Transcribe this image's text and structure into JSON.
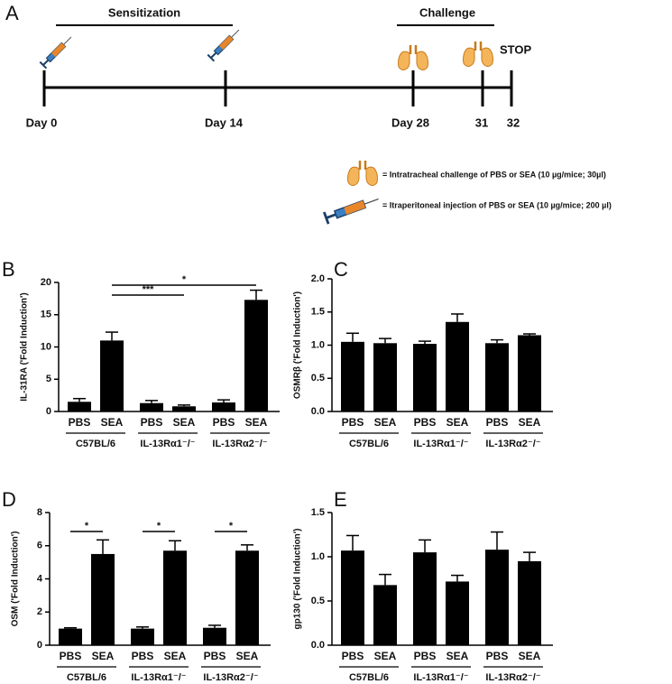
{
  "timeline": {
    "label": "A",
    "phases": [
      "Sensitization",
      "Challenge"
    ],
    "days": [
      "Day 0",
      "Day 14",
      "Day 28",
      "31",
      "32"
    ],
    "stop": "STOP",
    "legend": [
      "= Intratracheal  challenge of PBS or SEA (10 µg/mice; 30µl)",
      "= Itraperitoneal injection of PBS or SEA (10 µg/mice; 200 µl)"
    ]
  },
  "chart_data": [
    {
      "type": "bar",
      "panel": "B",
      "y_label": "IL-31RA ('Fold Induction')",
      "categories": [
        "PBS",
        "SEA",
        "PBS",
        "SEA",
        "PBS",
        "SEA"
      ],
      "groups": [
        "C57BL/6",
        "IL-13Rα1⁻/⁻",
        "IL-13Rα2⁻/⁻"
      ],
      "values": [
        1.5,
        11,
        1.3,
        0.8,
        1.4,
        17.3
      ],
      "errors": [
        0.5,
        1.3,
        0.4,
        0.2,
        0.4,
        1.5
      ],
      "color": "#000000",
      "ylim": [
        0,
        20
      ],
      "yticks": [
        0,
        5,
        10,
        15,
        20
      ],
      "significance": [
        "***",
        "*"
      ]
    },
    {
      "type": "bar",
      "panel": "C",
      "y_label": "OSMRβ ('Fold Induction')",
      "categories": [
        "PBS",
        "SEA",
        "PBS",
        "SEA",
        "PBS",
        "SEA"
      ],
      "groups": [
        "C57BL/6",
        "IL-13Rα1⁻/⁻",
        "IL-13Rα2⁻/⁻"
      ],
      "values": [
        1.05,
        1.03,
        1.02,
        1.35,
        1.03,
        1.15
      ],
      "errors": [
        0.13,
        0.07,
        0.04,
        0.12,
        0.05,
        0.02
      ],
      "color": "#000000",
      "ylim": [
        0,
        2
      ],
      "yticks": [
        {
          "value": 0,
          "label": "0.0"
        },
        {
          "value": 0.5,
          "label": "0.5"
        },
        {
          "value": 1,
          "label": "1.0"
        },
        {
          "value": 1.5,
          "label": "1.5"
        },
        {
          "value": 2,
          "label": "2.0"
        }
      ]
    },
    {
      "type": "bar",
      "panel": "D",
      "y_label": "OSM ('Fold Induction')",
      "categories": [
        "PBS",
        "SEA",
        "PBS",
        "SEA",
        "PBS",
        "SEA"
      ],
      "groups": [
        "C57BL/6",
        "IL-13Rα1⁻/⁻",
        "IL-13Rα2⁻/⁻"
      ],
      "values": [
        1.0,
        5.5,
        1.0,
        5.7,
        1.05,
        5.7
      ],
      "errors": [
        0.05,
        0.85,
        0.1,
        0.6,
        0.15,
        0.35
      ],
      "color": "#000000",
      "ylim": [
        0,
        8
      ],
      "yticks": [
        0,
        2,
        4,
        6,
        8
      ],
      "significance": [
        "*",
        "*",
        "*"
      ]
    },
    {
      "type": "bar",
      "panel": "E",
      "y_label": "gp130 ('Fold Induction')",
      "categories": [
        "PBS",
        "SEA",
        "PBS",
        "SEA",
        "PBS",
        "SEA"
      ],
      "groups": [
        "C57BL/6",
        "IL-13Rα1⁻/⁻",
        "IL-13Rα2⁻/⁻"
      ],
      "values": [
        1.07,
        0.68,
        1.05,
        0.72,
        1.08,
        0.95
      ],
      "errors": [
        0.17,
        0.12,
        0.14,
        0.07,
        0.2,
        0.1
      ],
      "color": "#000000",
      "ylim": [
        0,
        1.5
      ],
      "yticks": [
        {
          "value": 0,
          "label": "0.0"
        },
        {
          "value": 0.5,
          "label": "0.5"
        },
        {
          "value": 1,
          "label": "1.0"
        },
        {
          "value": 1.5,
          "label": "1.5"
        }
      ]
    }
  ]
}
